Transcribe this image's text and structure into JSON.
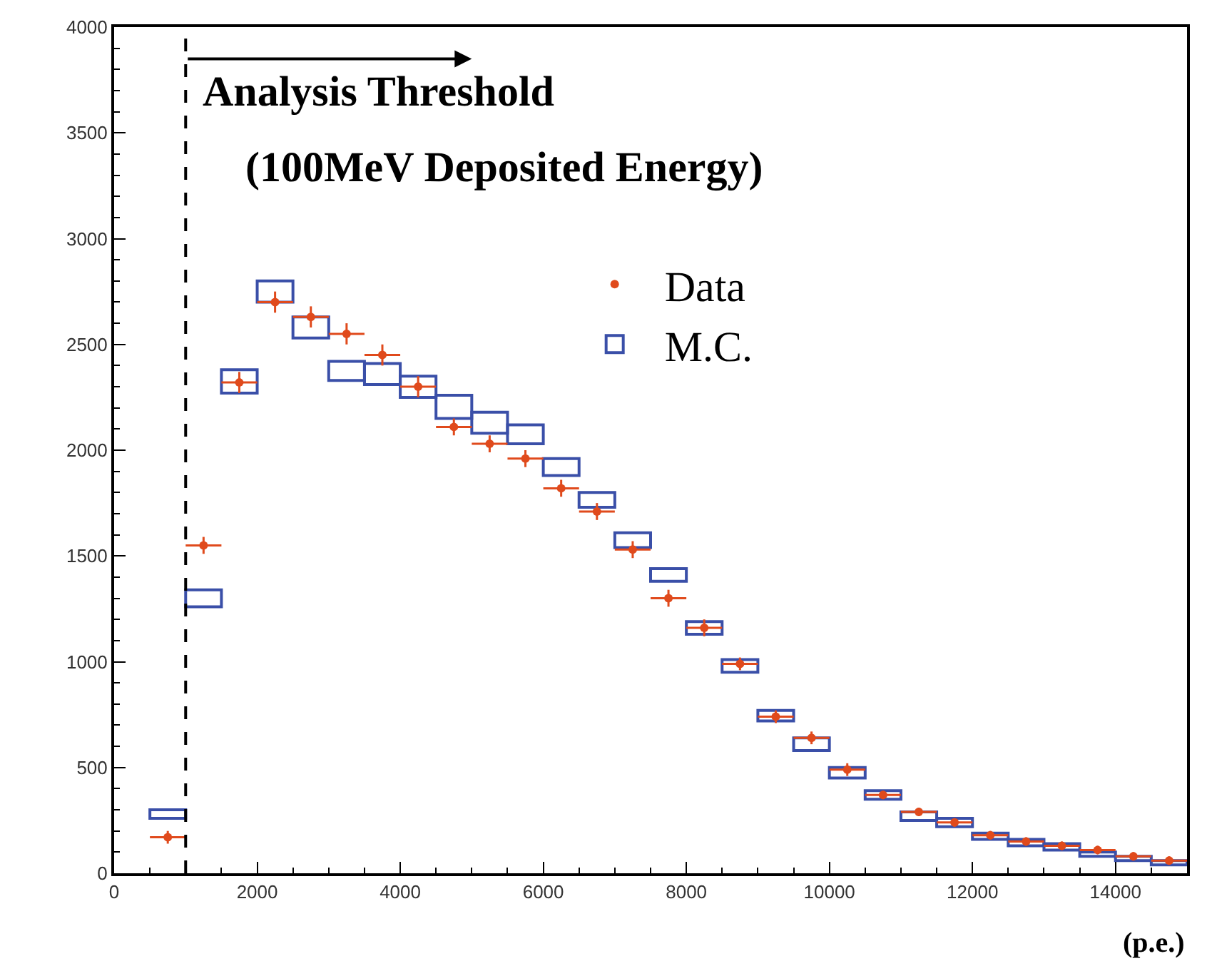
{
  "chart_data": {
    "type": "bar",
    "xlabel": "(p.e.)",
    "x": [
      750,
      1250,
      1750,
      2250,
      2750,
      3250,
      3750,
      4250,
      4750,
      5250,
      5750,
      6250,
      6750,
      7250,
      7750,
      8250,
      8750,
      9250,
      9750,
      10250,
      10750,
      11250,
      11750,
      12250,
      12750,
      13250,
      13750,
      14250,
      14750
    ],
    "series": [
      {
        "name": "Data",
        "type": "scatter",
        "color": "#e04a1c",
        "marker": "circle",
        "values": [
          170,
          1550,
          2320,
          2700,
          2630,
          2550,
          2450,
          2300,
          2110,
          2030,
          1960,
          1820,
          1710,
          1530,
          1300,
          1160,
          990,
          740,
          640,
          490,
          370,
          290,
          240,
          180,
          150,
          130,
          110,
          80,
          60
        ],
        "errors": [
          30,
          40,
          50,
          50,
          50,
          50,
          50,
          50,
          40,
          40,
          40,
          40,
          40,
          40,
          40,
          40,
          30,
          30,
          30,
          30,
          20,
          20,
          20,
          20,
          20,
          20,
          20,
          20,
          20
        ],
        "xerrors": [
          250,
          250,
          250,
          250,
          250,
          250,
          250,
          250,
          250,
          250,
          250,
          250,
          250,
          250,
          250,
          250,
          250,
          250,
          250,
          250,
          250,
          250,
          250,
          250,
          250,
          250,
          250,
          250,
          250
        ]
      },
      {
        "name": "M.C.",
        "color": "#3a4fa8",
        "base": [
          260,
          1260,
          2270,
          2700,
          2530,
          2330,
          2310,
          2250,
          2150,
          2080,
          2030,
          1880,
          1730,
          1540,
          1380,
          1130,
          950,
          720,
          580,
          450,
          350,
          250,
          220,
          160,
          130,
          110,
          80,
          60,
          40
        ],
        "values": [
          40,
          80,
          110,
          100,
          100,
          90,
          100,
          100,
          110,
          100,
          90,
          80,
          70,
          70,
          60,
          60,
          60,
          50,
          60,
          50,
          40,
          40,
          40,
          30,
          30,
          30,
          20,
          20,
          20
        ]
      }
    ],
    "xlim": [
      0,
      15000
    ],
    "xticks": [
      0,
      2000,
      4000,
      6000,
      8000,
      10000,
      12000,
      14000
    ],
    "ylim": [
      0,
      4000
    ],
    "yticks": [
      0,
      500,
      1000,
      1500,
      2000,
      2500,
      3000,
      3500,
      4000
    ],
    "grid": false,
    "legend": "top right",
    "ref_lines": [
      {
        "axis": "x",
        "value": 1000,
        "line_style": "dashed",
        "color": "#000000"
      }
    ],
    "annotations": [
      "Analysis Threshold",
      "(100MeV Deposited Energy)"
    ]
  }
}
